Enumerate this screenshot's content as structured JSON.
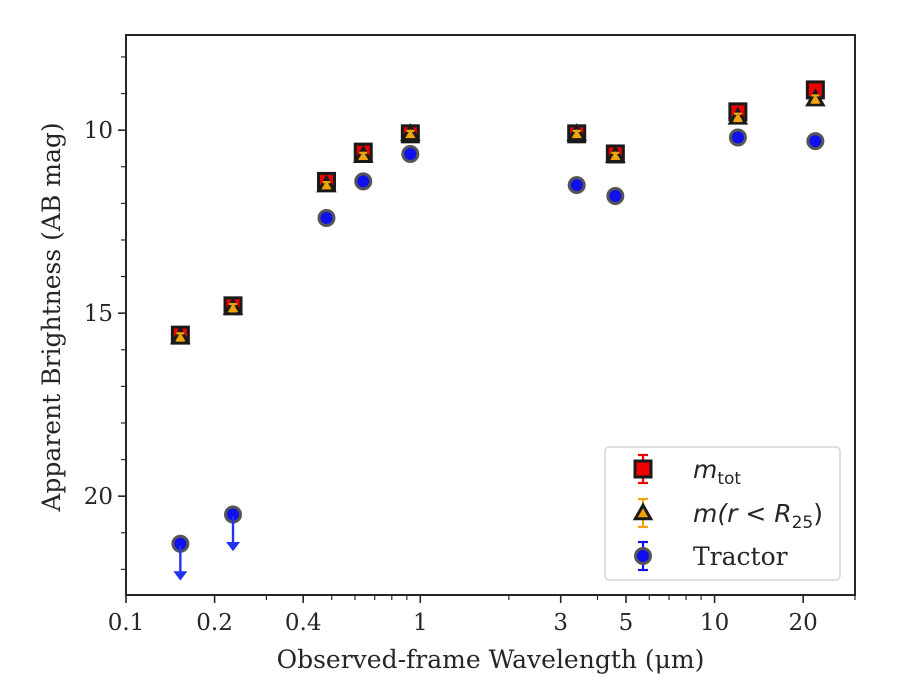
{
  "chart_data": {
    "type": "scatter",
    "title": "",
    "xlabel": "Observed-frame Wavelength (μm)",
    "ylabel": "Apparent Brightness (AB mag)",
    "x_scale": "log",
    "xlim": [
      0.1,
      30
    ],
    "ylim": [
      22.7,
      7.4
    ],
    "y_inverted": true,
    "grid": false,
    "legend_position": "lower-right",
    "x_ticks": [
      {
        "value": 0.1,
        "label": "0.1"
      },
      {
        "value": 0.2,
        "label": "0.2"
      },
      {
        "value": 0.4,
        "label": "0.4"
      },
      {
        "value": 1,
        "label": "1"
      },
      {
        "value": 3,
        "label": "3"
      },
      {
        "value": 5,
        "label": "5"
      },
      {
        "value": 10,
        "label": "10"
      },
      {
        "value": 20,
        "label": "20"
      }
    ],
    "x_minor_ticks": [
      0.3,
      0.5,
      0.6,
      0.7,
      0.8,
      0.9,
      2,
      4,
      6,
      7,
      8,
      9,
      30
    ],
    "y_ticks": [
      {
        "value": 10,
        "label": "10"
      },
      {
        "value": 15,
        "label": "15"
      },
      {
        "value": 20,
        "label": "20"
      }
    ],
    "y_minor_ticks": [
      8,
      9,
      11,
      12,
      13,
      14,
      16,
      17,
      18,
      19,
      21,
      22
    ],
    "series": [
      {
        "name": "m_tot",
        "label_main": "m",
        "label_sub": "tot",
        "marker": "square",
        "color": "#ee0000",
        "edge_color": "#1a1a1a",
        "x": [
          0.153,
          0.231,
          0.48,
          0.64,
          0.925,
          3.4,
          4.6,
          12.0,
          22.0
        ],
        "y": [
          15.6,
          14.8,
          11.4,
          10.6,
          10.1,
          10.1,
          10.65,
          9.5,
          8.9
        ],
        "yerr": [
          0.12,
          0.1,
          0.08,
          0.08,
          0.08,
          0.08,
          0.08,
          0.1,
          0.1
        ]
      },
      {
        "name": "m(r < R25)",
        "label_main": "m(r < R",
        "label_sub": "25",
        "label_end": ")",
        "marker": "triangle",
        "color": "#f0a30a",
        "edge_color": "#1a1a1a",
        "x": [
          0.153,
          0.231,
          0.48,
          0.64,
          0.925,
          3.4,
          4.6,
          12.0,
          22.0
        ],
        "y": [
          15.65,
          14.85,
          11.5,
          10.7,
          10.1,
          10.1,
          10.7,
          9.65,
          9.15
        ],
        "yerr": [
          0.1,
          0.1,
          0.08,
          0.08,
          0.08,
          0.08,
          0.08,
          0.1,
          0.1
        ]
      },
      {
        "name": "Tractor",
        "marker": "circle",
        "color": "#1010ee",
        "edge_color": "#555555",
        "x": [
          0.153,
          0.231,
          0.48,
          0.64,
          0.925,
          3.4,
          4.6,
          12.0,
          22.0
        ],
        "y": [
          21.3,
          20.5,
          12.4,
          11.4,
          10.65,
          11.5,
          11.8,
          10.2,
          10.3
        ],
        "yerr": [
          0.05,
          0.05,
          0.05,
          0.05,
          0.05,
          0.05,
          0.05,
          0.05,
          0.05
        ],
        "upper_limits_x": [
          0.153,
          0.231
        ]
      }
    ]
  }
}
